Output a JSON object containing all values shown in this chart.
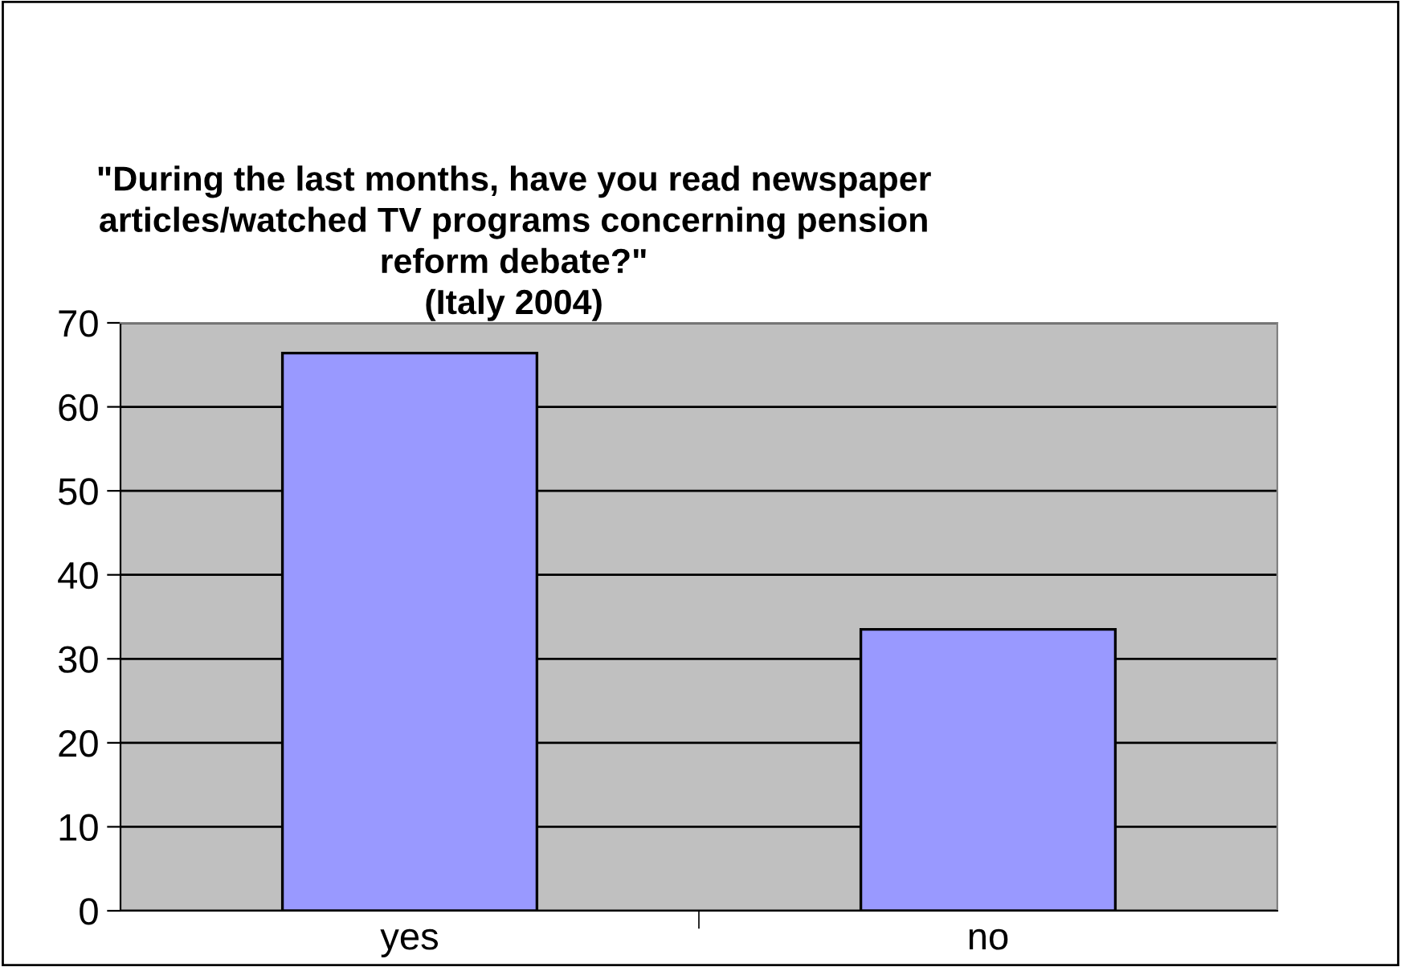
{
  "chart_data": {
    "type": "bar",
    "title": "\"During the last months, have you read newspaper\narticles/watched TV programs concerning pension\nreform debate?\"\n(Italy 2004)",
    "categories": [
      "yes",
      "no"
    ],
    "values": [
      66.4,
      33.5
    ],
    "color": "#9999ff",
    "ylim": [
      0,
      70
    ],
    "yticks": [
      0,
      10,
      20,
      30,
      40,
      50,
      60,
      70
    ],
    "grid": "y"
  }
}
